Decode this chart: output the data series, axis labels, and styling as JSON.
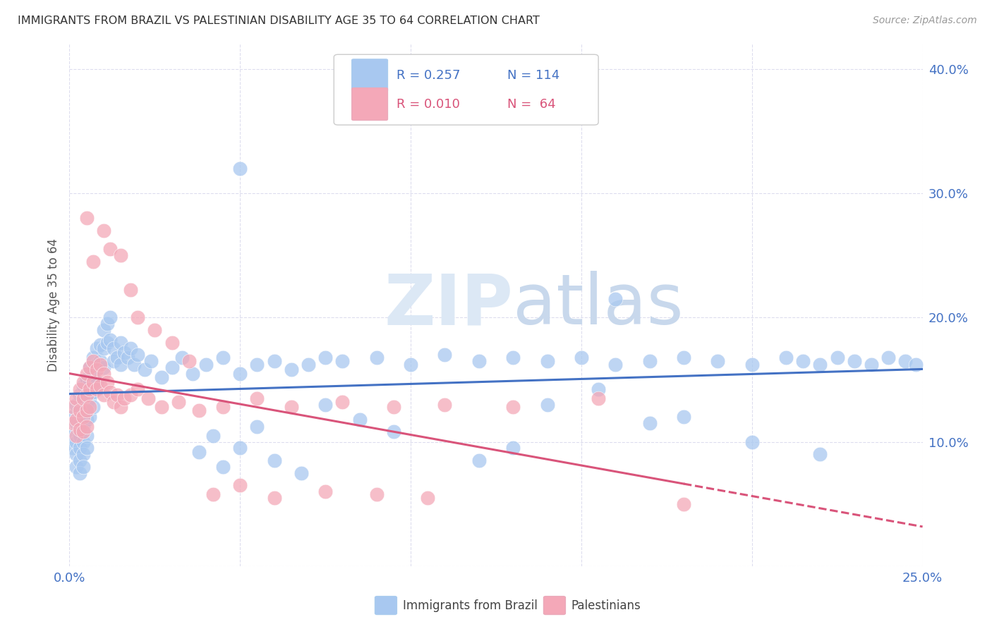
{
  "title": "IMMIGRANTS FROM BRAZIL VS PALESTINIAN DISABILITY AGE 35 TO 64 CORRELATION CHART",
  "source": "Source: ZipAtlas.com",
  "ylabel": "Disability Age 35 to 64",
  "xlim": [
    0.0,
    0.25
  ],
  "ylim": [
    0.0,
    0.42
  ],
  "xticks": [
    0.0,
    0.05,
    0.1,
    0.15,
    0.2,
    0.25
  ],
  "yticks": [
    0.0,
    0.1,
    0.2,
    0.3,
    0.4
  ],
  "xticklabels": [
    "0.0%",
    "",
    "",
    "",
    "",
    "25.0%"
  ],
  "yticklabels": [
    "",
    "10.0%",
    "20.0%",
    "30.0%",
    "40.0%"
  ],
  "legend_r1": "R = 0.257",
  "legend_n1": "N = 114",
  "legend_r2": "R = 0.010",
  "legend_n2": "N =  64",
  "color_brazil": "#A8C8F0",
  "color_palestinians": "#F4A8B8",
  "color_brazil_line": "#4472C4",
  "color_palestinians_line": "#D9547A",
  "watermark_zip": "ZIP",
  "watermark_atlas": "atlas",
  "legend_label1": "Immigrants from Brazil",
  "legend_label2": "Palestinians",
  "brazil_x": [
    0.001,
    0.001,
    0.001,
    0.002,
    0.002,
    0.002,
    0.002,
    0.002,
    0.003,
    0.003,
    0.003,
    0.003,
    0.003,
    0.003,
    0.003,
    0.004,
    0.004,
    0.004,
    0.004,
    0.004,
    0.004,
    0.004,
    0.005,
    0.005,
    0.005,
    0.005,
    0.005,
    0.005,
    0.006,
    0.006,
    0.006,
    0.006,
    0.007,
    0.007,
    0.007,
    0.007,
    0.008,
    0.008,
    0.008,
    0.009,
    0.009,
    0.01,
    0.01,
    0.01,
    0.011,
    0.011,
    0.012,
    0.012,
    0.013,
    0.013,
    0.014,
    0.015,
    0.015,
    0.016,
    0.017,
    0.018,
    0.019,
    0.02,
    0.022,
    0.024,
    0.027,
    0.03,
    0.033,
    0.036,
    0.04,
    0.045,
    0.05,
    0.055,
    0.06,
    0.065,
    0.07,
    0.075,
    0.08,
    0.09,
    0.1,
    0.11,
    0.12,
    0.13,
    0.14,
    0.15,
    0.16,
    0.17,
    0.18,
    0.19,
    0.2,
    0.21,
    0.215,
    0.22,
    0.225,
    0.23,
    0.235,
    0.24,
    0.245,
    0.248,
    0.05,
    0.16,
    0.22,
    0.2,
    0.18,
    0.155,
    0.17,
    0.14,
    0.13,
    0.12,
    0.095,
    0.085,
    0.075,
    0.068,
    0.06,
    0.055,
    0.05,
    0.045,
    0.042,
    0.038
  ],
  "brazil_y": [
    0.12,
    0.105,
    0.095,
    0.13,
    0.115,
    0.1,
    0.09,
    0.08,
    0.138,
    0.128,
    0.115,
    0.105,
    0.095,
    0.085,
    0.075,
    0.145,
    0.135,
    0.122,
    0.112,
    0.1,
    0.09,
    0.08,
    0.15,
    0.14,
    0.128,
    0.118,
    0.105,
    0.095,
    0.16,
    0.148,
    0.135,
    0.12,
    0.168,
    0.155,
    0.14,
    0.128,
    0.175,
    0.162,
    0.148,
    0.178,
    0.165,
    0.19,
    0.175,
    0.16,
    0.195,
    0.18,
    0.2,
    0.182,
    0.175,
    0.165,
    0.168,
    0.18,
    0.162,
    0.172,
    0.168,
    0.175,
    0.162,
    0.17,
    0.158,
    0.165,
    0.152,
    0.16,
    0.168,
    0.155,
    0.162,
    0.168,
    0.155,
    0.162,
    0.165,
    0.158,
    0.162,
    0.168,
    0.165,
    0.168,
    0.162,
    0.17,
    0.165,
    0.168,
    0.165,
    0.168,
    0.162,
    0.165,
    0.168,
    0.165,
    0.162,
    0.168,
    0.165,
    0.162,
    0.168,
    0.165,
    0.162,
    0.168,
    0.165,
    0.162,
    0.32,
    0.215,
    0.09,
    0.1,
    0.12,
    0.142,
    0.115,
    0.13,
    0.095,
    0.085,
    0.108,
    0.118,
    0.13,
    0.075,
    0.085,
    0.112,
    0.095,
    0.08,
    0.105,
    0.092
  ],
  "pal_x": [
    0.001,
    0.001,
    0.002,
    0.002,
    0.002,
    0.003,
    0.003,
    0.003,
    0.004,
    0.004,
    0.004,
    0.004,
    0.005,
    0.005,
    0.005,
    0.005,
    0.006,
    0.006,
    0.006,
    0.007,
    0.007,
    0.008,
    0.008,
    0.009,
    0.009,
    0.01,
    0.01,
    0.011,
    0.012,
    0.013,
    0.014,
    0.015,
    0.016,
    0.018,
    0.02,
    0.023,
    0.027,
    0.032,
    0.038,
    0.045,
    0.055,
    0.065,
    0.08,
    0.095,
    0.11,
    0.13,
    0.155,
    0.18,
    0.01,
    0.007,
    0.012,
    0.015,
    0.02,
    0.025,
    0.005,
    0.018,
    0.03,
    0.035,
    0.042,
    0.05,
    0.06,
    0.075,
    0.09,
    0.105
  ],
  "pal_y": [
    0.128,
    0.115,
    0.135,
    0.118,
    0.105,
    0.142,
    0.125,
    0.11,
    0.148,
    0.135,
    0.12,
    0.108,
    0.155,
    0.138,
    0.125,
    0.112,
    0.16,
    0.142,
    0.128,
    0.165,
    0.148,
    0.158,
    0.142,
    0.162,
    0.145,
    0.155,
    0.138,
    0.148,
    0.14,
    0.132,
    0.138,
    0.128,
    0.135,
    0.138,
    0.142,
    0.135,
    0.128,
    0.132,
    0.125,
    0.128,
    0.135,
    0.128,
    0.132,
    0.128,
    0.13,
    0.128,
    0.135,
    0.05,
    0.27,
    0.245,
    0.255,
    0.25,
    0.2,
    0.19,
    0.28,
    0.222,
    0.18,
    0.165,
    0.058,
    0.065,
    0.055,
    0.06,
    0.058,
    0.055
  ]
}
